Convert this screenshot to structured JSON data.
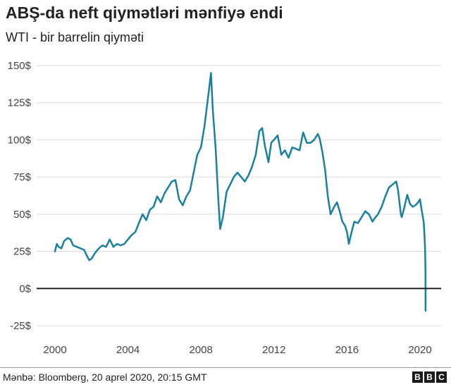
{
  "title": "ABŞ-da neft qiymətləri mənfiyə endi",
  "subtitle": "WTI - bir barrelin qiyməti",
  "source": "Mənbə: Bloomberg, 20 aprel 2020, 20:15 GMT",
  "logo": {
    "letters": [
      "B",
      "B",
      "C"
    ]
  },
  "colors": {
    "line": "#1a80a0",
    "grid": "#d9d9d9",
    "zero": "#222222"
  },
  "chart_data": {
    "type": "line",
    "title": "ABŞ-da neft qiymətləri mənfiyə endi",
    "subtitle": "WTI - bir barrelin qiyməti",
    "xlabel": "",
    "ylabel": "",
    "xlim": [
      2000,
      2020.31
    ],
    "ylim": [
      -25,
      150
    ],
    "x_ticks": [
      2000,
      2004,
      2008,
      2012,
      2016,
      2020
    ],
    "x_tick_labels": [
      "2000",
      "2004",
      "2008",
      "2012",
      "2016",
      "2020"
    ],
    "y_ticks": [
      150,
      125,
      100,
      75,
      50,
      25,
      0,
      -25
    ],
    "y_tick_labels": [
      "150$",
      "125$",
      "100$",
      "75$",
      "50$",
      "25$",
      "0$",
      "-25$"
    ],
    "grid": true,
    "series": [
      {
        "name": "WTI",
        "x": [
          2000.0,
          2000.1,
          2000.2,
          2000.35,
          2000.5,
          2000.7,
          2000.85,
          2001.0,
          2001.2,
          2001.4,
          2001.6,
          2001.75,
          2001.88,
          2002.0,
          2002.2,
          2002.4,
          2002.6,
          2002.8,
          2003.0,
          2003.2,
          2003.4,
          2003.6,
          2003.8,
          2004.0,
          2004.2,
          2004.4,
          2004.6,
          2004.8,
          2005.0,
          2005.2,
          2005.4,
          2005.6,
          2005.8,
          2006.0,
          2006.2,
          2006.4,
          2006.6,
          2006.8,
          2007.0,
          2007.2,
          2007.4,
          2007.6,
          2007.8,
          2008.0,
          2008.2,
          2008.4,
          2008.5,
          2008.55,
          2008.65,
          2008.8,
          2008.95,
          2009.05,
          2009.2,
          2009.4,
          2009.6,
          2009.8,
          2010.0,
          2010.2,
          2010.4,
          2010.6,
          2010.8,
          2011.0,
          2011.2,
          2011.35,
          2011.5,
          2011.7,
          2011.85,
          2012.0,
          2012.2,
          2012.4,
          2012.6,
          2012.8,
          2013.0,
          2013.2,
          2013.4,
          2013.6,
          2013.8,
          2014.0,
          2014.2,
          2014.4,
          2014.5,
          2014.65,
          2014.8,
          2014.95,
          2015.1,
          2015.3,
          2015.45,
          2015.6,
          2015.75,
          2015.9,
          2016.0,
          2016.1,
          2016.25,
          2016.4,
          2016.6,
          2016.8,
          2017.0,
          2017.2,
          2017.4,
          2017.5,
          2017.7,
          2017.9,
          2018.1,
          2018.3,
          2018.5,
          2018.7,
          2018.8,
          2018.95,
          2019.0,
          2019.15,
          2019.3,
          2019.45,
          2019.6,
          2019.75,
          2019.9,
          2020.0,
          2020.1,
          2020.2,
          2020.25,
          2020.28,
          2020.29,
          2020.3,
          2020.305,
          2020.31
        ],
        "y": [
          25,
          30,
          28,
          27,
          32,
          34,
          33,
          29,
          28,
          27,
          26,
          22,
          19,
          20,
          24,
          27,
          29,
          28,
          33,
          28,
          30,
          29,
          30,
          33,
          36,
          38,
          44,
          50,
          46,
          53,
          55,
          62,
          58,
          64,
          68,
          72,
          73,
          60,
          56,
          62,
          66,
          78,
          90,
          95,
          110,
          130,
          140,
          145,
          120,
          95,
          60,
          40,
          48,
          65,
          70,
          75,
          78,
          75,
          72,
          76,
          82,
          90,
          106,
          108,
          96,
          85,
          98,
          100,
          103,
          90,
          93,
          88,
          95,
          94,
          93,
          105,
          98,
          98,
          100,
          104,
          101,
          92,
          80,
          62,
          50,
          55,
          58,
          52,
          45,
          42,
          38,
          30,
          38,
          45,
          44,
          48,
          52,
          50,
          45,
          47,
          50,
          55,
          62,
          68,
          70,
          72,
          66,
          50,
          48,
          55,
          63,
          57,
          55,
          56,
          58,
          60,
          52,
          45,
          35,
          25,
          20,
          10,
          -15,
          0
        ],
        "color": "#1a80a0"
      }
    ]
  }
}
